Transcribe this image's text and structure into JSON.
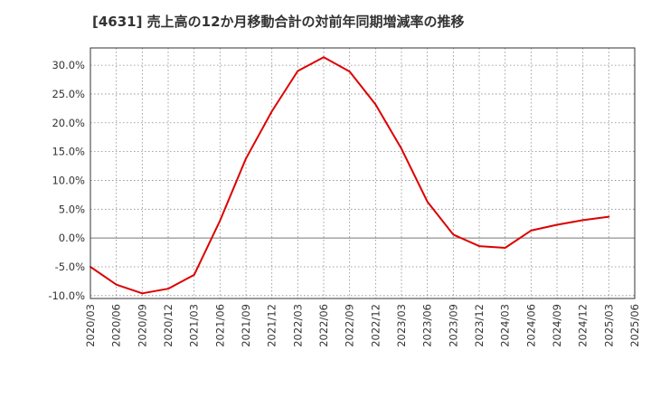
{
  "chart_data": {
    "type": "line",
    "title": "[4631]  売上高の12か月移動合計の対前年同期増減率の推移",
    "xlabel": "",
    "ylabel": "",
    "ylim": [
      -10.5,
      33
    ],
    "y_ticks": [
      -10,
      -5,
      0,
      5,
      10,
      15,
      20,
      25,
      30
    ],
    "y_tick_labels": [
      "-10.0%",
      "-5.0%",
      "0.0%",
      "5.0%",
      "10.0%",
      "15.0%",
      "20.0%",
      "25.0%",
      "30.0%"
    ],
    "categories": [
      "2020/03",
      "2020/06",
      "2020/09",
      "2020/12",
      "2021/03",
      "2021/06",
      "2021/09",
      "2021/12",
      "2022/03",
      "2022/06",
      "2022/09",
      "2022/12",
      "2023/03",
      "2023/06",
      "2023/09",
      "2023/12",
      "2024/03",
      "2024/06",
      "2024/09",
      "2024/12",
      "2025/03",
      "2025/06"
    ],
    "grid": true,
    "series": [
      {
        "name": "増減率",
        "color": "#dd0000",
        "values": [
          -5.0,
          -8.1,
          -9.6,
          -8.8,
          -6.4,
          3.0,
          13.8,
          22.0,
          29.0,
          31.4,
          28.9,
          23.2,
          15.5,
          6.3,
          0.6,
          -1.4,
          -1.7,
          1.3,
          2.3,
          3.1,
          3.7,
          null
        ]
      }
    ]
  }
}
